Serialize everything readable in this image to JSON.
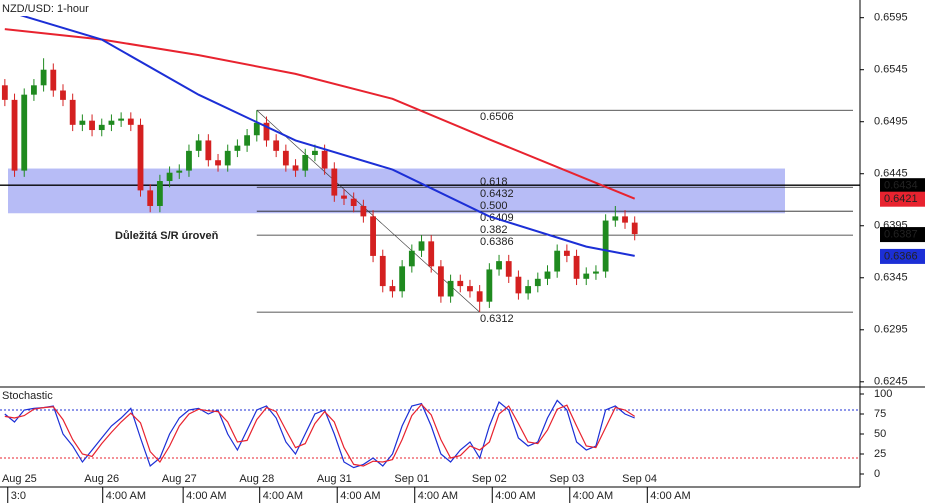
{
  "chart_data": {
    "type": "candlestick",
    "title": "NZD/USD: 1-hour",
    "annotation": "Důležitá S/R úroveň",
    "xlim": [
      -0.5,
      88.25
    ],
    "ylim": [
      0.624,
      0.6612
    ],
    "yticks": [
      0.6595,
      0.6545,
      0.6495,
      0.6445,
      0.6395,
      0.6345,
      0.6295,
      0.6245
    ],
    "date_ticks": [
      {
        "value": 1.5,
        "label": "Aug 25"
      },
      {
        "value": 10,
        "label": "Aug 26"
      },
      {
        "value": 18,
        "label": "Aug 27"
      },
      {
        "value": 26,
        "label": "Aug 28"
      },
      {
        "value": 34,
        "label": "Aug 31"
      },
      {
        "value": 42,
        "label": "Sep 01"
      },
      {
        "value": 50,
        "label": "Sep 02"
      },
      {
        "value": 58,
        "label": "Sep 03"
      },
      {
        "value": 65.5,
        "label": "Sep 04"
      }
    ],
    "time_ticks": [
      {
        "value": 0.3,
        "label": "3:0"
      },
      {
        "value": 10.1,
        "label": "4:00 AM"
      },
      {
        "value": 18.4,
        "label": "4:00 AM"
      },
      {
        "value": 26.3,
        "label": "4:00 AM"
      },
      {
        "value": 34.3,
        "label": "4:00 AM"
      },
      {
        "value": 42.3,
        "label": "4:00 AM"
      },
      {
        "value": 50.3,
        "label": "4:00 AM"
      },
      {
        "value": 58.3,
        "label": "4:00 AM"
      },
      {
        "value": 66.3,
        "label": "4:00 AM"
      }
    ],
    "up_color": "#1f8a1f",
    "down_color": "#d42020",
    "open": [
      0.653,
      0.6516,
      0.6448,
      0.6521,
      0.653,
      0.6545,
      0.6525,
      0.6516,
      0.6492,
      0.6496,
      0.6487,
      0.6492,
      0.6496,
      0.6498,
      0.6492,
      0.6429,
      0.6414,
      0.6438,
      0.6446,
      0.6448,
      0.6467,
      0.6477,
      0.6458,
      0.6453,
      0.6467,
      0.6472,
      0.6482,
      0.6494,
      0.6477,
      0.6467,
      0.6453,
      0.6448,
      0.6463,
      0.6467,
      0.645,
      0.6424,
      0.6421,
      0.6414,
      0.6404,
      0.6366,
      0.6337,
      0.6332,
      0.6356,
      0.6371,
      0.638,
      0.6356,
      0.6327,
      0.6342,
      0.6337,
      0.6332,
      0.6322,
      0.6353,
      0.6361,
      0.6346,
      0.633,
      0.6337,
      0.6344,
      0.6351,
      0.6371,
      0.6366,
      0.6344,
      0.6349,
      0.6351,
      0.64,
      0.6404,
      0.6398
    ],
    "high": [
      0.6536,
      0.6522,
      0.6527,
      0.6536,
      0.6556,
      0.6551,
      0.6531,
      0.6522,
      0.6502,
      0.6502,
      0.6498,
      0.6502,
      0.6504,
      0.6504,
      0.6498,
      0.6435,
      0.6444,
      0.6452,
      0.6454,
      0.6473,
      0.6483,
      0.6483,
      0.6464,
      0.6473,
      0.6478,
      0.6488,
      0.6506,
      0.65,
      0.6483,
      0.6473,
      0.6459,
      0.6469,
      0.6473,
      0.6473,
      0.6456,
      0.643,
      0.6427,
      0.642,
      0.641,
      0.6372,
      0.6343,
      0.6362,
      0.6377,
      0.6386,
      0.6386,
      0.6362,
      0.6348,
      0.6348,
      0.6343,
      0.6338,
      0.6359,
      0.6367,
      0.6367,
      0.6352,
      0.6343,
      0.635,
      0.6357,
      0.6377,
      0.6377,
      0.6372,
      0.6355,
      0.6357,
      0.6406,
      0.6414,
      0.641,
      0.6404
    ],
    "low": [
      0.651,
      0.6442,
      0.6442,
      0.6515,
      0.6524,
      0.6519,
      0.651,
      0.6486,
      0.6486,
      0.6481,
      0.6481,
      0.6486,
      0.649,
      0.6486,
      0.6423,
      0.6408,
      0.6408,
      0.6432,
      0.644,
      0.6442,
      0.6461,
      0.6452,
      0.6447,
      0.6447,
      0.6461,
      0.6466,
      0.6476,
      0.6471,
      0.6461,
      0.6447,
      0.6442,
      0.6442,
      0.6457,
      0.6444,
      0.6418,
      0.6415,
      0.6408,
      0.6398,
      0.636,
      0.6331,
      0.6326,
      0.6326,
      0.635,
      0.6365,
      0.635,
      0.6321,
      0.6321,
      0.6331,
      0.6326,
      0.6312,
      0.6316,
      0.6347,
      0.634,
      0.6324,
      0.6324,
      0.6331,
      0.6338,
      0.6345,
      0.636,
      0.6338,
      0.6338,
      0.6343,
      0.6345,
      0.6394,
      0.6392,
      0.6381
    ],
    "close": [
      0.6516,
      0.6448,
      0.6521,
      0.653,
      0.6545,
      0.6525,
      0.6516,
      0.6492,
      0.6496,
      0.6487,
      0.6492,
      0.6496,
      0.6498,
      0.6492,
      0.6429,
      0.6414,
      0.6438,
      0.6446,
      0.6448,
      0.6467,
      0.6477,
      0.6458,
      0.6453,
      0.6467,
      0.6472,
      0.6482,
      0.6494,
      0.6477,
      0.6467,
      0.6453,
      0.6448,
      0.6463,
      0.6467,
      0.645,
      0.6424,
      0.6421,
      0.6414,
      0.6404,
      0.6366,
      0.6337,
      0.6332,
      0.6356,
      0.6371,
      0.638,
      0.6356,
      0.6327,
      0.6342,
      0.6337,
      0.6332,
      0.6322,
      0.6353,
      0.6361,
      0.6346,
      0.633,
      0.6337,
      0.6344,
      0.6351,
      0.6371,
      0.6366,
      0.6344,
      0.6349,
      0.6351,
      0.64,
      0.6404,
      0.6398,
      0.6387
    ],
    "ma_x": [
      0,
      10,
      20,
      30,
      40,
      50,
      60,
      65
    ],
    "ma": [
      {
        "color": "#e8232f",
        "values": [
          0.6584,
          0.6574,
          0.6559,
          0.6541,
          0.6517,
          0.6478,
          0.644,
          0.6421
        ]
      },
      {
        "color": "#1c2fd6",
        "values": [
          0.6602,
          0.6574,
          0.6521,
          0.6477,
          0.6449,
          0.6404,
          0.6375,
          0.6366
        ]
      }
    ],
    "sr_level": 0.6434,
    "sr_zone": [
      0.6407,
      0.645
    ],
    "fib_start": 26,
    "fib_end": 49,
    "fib_levels": [
      0.6506,
      0.6432,
      0.6409,
      0.6386,
      0.6312
    ],
    "fib_ratios": [
      null,
      "0.618",
      "0.500",
      "0.382",
      null
    ],
    "stochastic": {
      "title": "Stochastic",
      "ylim": [
        -13.75,
        108.75
      ],
      "yticks": [
        100,
        75,
        50,
        25,
        0
      ],
      "levels": [
        80,
        20
      ],
      "series": [
        {
          "color": "#1c2fd6",
          "values": [
            75,
            65,
            80,
            82,
            83,
            85,
            50,
            35,
            15,
            30,
            45,
            60,
            70,
            82,
            45,
            10,
            20,
            50,
            70,
            80,
            82,
            75,
            80,
            50,
            30,
            55,
            80,
            85,
            70,
            40,
            25,
            50,
            75,
            80,
            50,
            15,
            8,
            12,
            20,
            10,
            25,
            60,
            85,
            88,
            60,
            25,
            15,
            30,
            40,
            20,
            60,
            90,
            80,
            45,
            35,
            40,
            70,
            92,
            80,
            40,
            30,
            35,
            80,
            85,
            75,
            70
          ]
        },
        {
          "color": "#e8232f",
          "values": [
            72,
            70,
            73,
            81,
            83,
            84,
            68,
            43,
            25,
            22,
            38,
            52,
            65,
            76,
            64,
            28,
            15,
            35,
            60,
            75,
            81,
            79,
            78,
            65,
            40,
            42,
            68,
            83,
            78,
            55,
            33,
            38,
            63,
            78,
            65,
            33,
            12,
            10,
            16,
            15,
            18,
            43,
            73,
            87,
            74,
            43,
            20,
            23,
            35,
            30,
            40,
            75,
            85,
            63,
            40,
            38,
            55,
            81,
            86,
            60,
            35,
            33,
            58,
            83,
            80,
            72
          ]
        }
      ]
    }
  }
}
